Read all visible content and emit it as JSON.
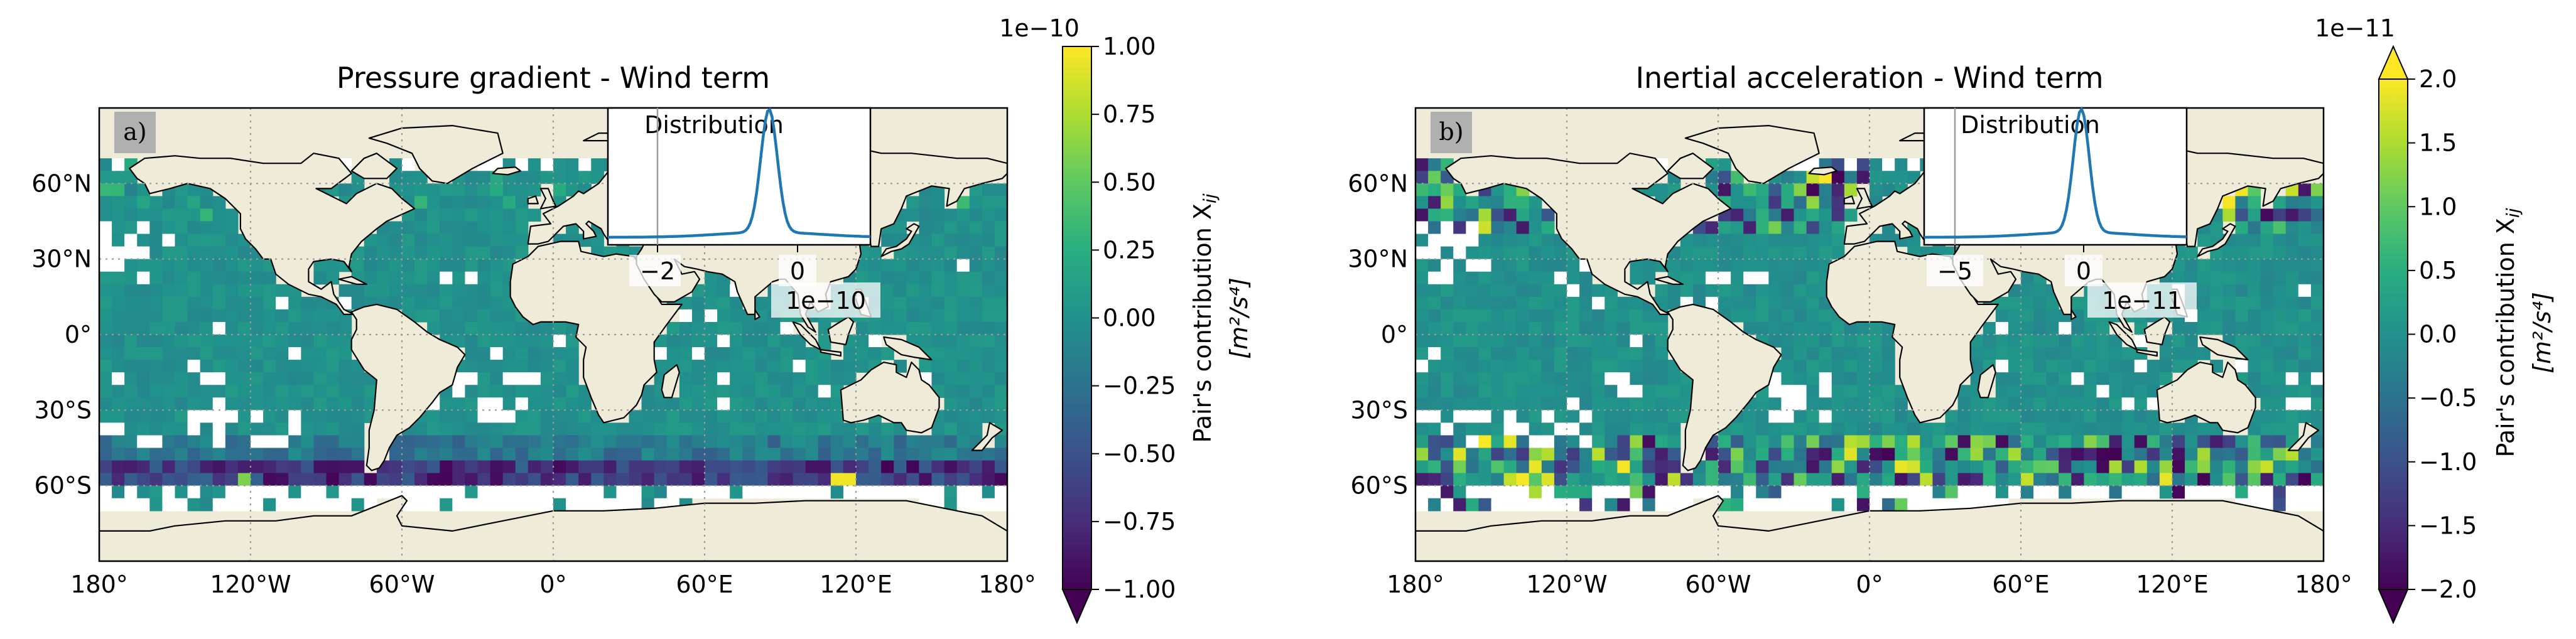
{
  "panels": [
    {
      "id": "a",
      "tag": "a)",
      "title": "Pressure gradient - Wind term",
      "x_tick_labels": [
        "180°",
        "120°W",
        "60°W",
        "0°",
        "60°E",
        "120°E",
        "180°"
      ],
      "y_tick_labels": [
        "60°N",
        "30°N",
        "0°",
        "30°S",
        "60°S"
      ],
      "colorbar": {
        "scale_label": "1e−10",
        "ticks": [
          1.0,
          0.75,
          0.5,
          0.25,
          0.0,
          -0.25,
          -0.5,
          -0.75,
          -1.0
        ],
        "tick_labels": [
          "1.00",
          "0.75",
          "0.50",
          "0.25",
          "0.00",
          "−0.25",
          "−0.50",
          "−0.75",
          "−1.00"
        ],
        "label_line1": "Pair's contribution X",
        "label_sub": "ij",
        "label_line2": "[m²/s⁴]",
        "extend": "min",
        "colormap": "viridis"
      },
      "inset": {
        "title": "Distribution",
        "x_tick_labels": [
          "−2",
          "0"
        ],
        "x_ticks": [
          -2,
          0
        ],
        "xlim": [
          -3.5,
          2.2
        ],
        "scale_label": "1e−10",
        "line_color": "#1f77b4"
      }
    },
    {
      "id": "b",
      "tag": "b)",
      "title": "Inertial acceleration - Wind term",
      "x_tick_labels": [
        "180°",
        "120°W",
        "60°W",
        "0°",
        "60°E",
        "120°E",
        "180°"
      ],
      "y_tick_labels": [
        "60°N",
        "30°N",
        "0°",
        "30°S",
        "60°S"
      ],
      "colorbar": {
        "scale_label": "1e−11",
        "ticks": [
          2.0,
          1.5,
          1.0,
          0.5,
          0.0,
          -0.5,
          -1.0,
          -1.5,
          -2.0
        ],
        "tick_labels": [
          "2.0",
          "1.5",
          "1.0",
          "0.5",
          "0.0",
          "−0.5",
          "−1.0",
          "−1.5",
          "−2.0"
        ],
        "label_line1": "Pair's contribution X",
        "label_sub": "ij",
        "label_line2": "[m²/s⁴]",
        "extend": "both",
        "colormap": "viridis"
      },
      "inset": {
        "title": "Distribution",
        "x_tick_labels": [
          "−5",
          "0"
        ],
        "x_ticks": [
          -5,
          0
        ],
        "xlim": [
          -8.2,
          5.5
        ],
        "scale_label": "1e−11",
        "line_color": "#1f77b4"
      }
    }
  ],
  "chart_data": [
    {
      "type": "heatmap",
      "title": "Pressure gradient - Wind term",
      "projection": "PlateCarree",
      "xlim": [
        -180,
        180
      ],
      "ylim": [
        -90,
        90
      ],
      "grid": true,
      "value_range": [
        -1e-10,
        1e-10
      ],
      "units": "m²/s⁴",
      "description_of_values": "Mostly near 0 (teal) over open ocean; strongly negative band (-0.5 to -1.0e-10) in Southern Ocean 50–60°S; white cells are missing data",
      "inset_distribution": {
        "peak_at": 0,
        "xlim": [
          -3.5,
          2.2
        ]
      }
    },
    {
      "type": "heatmap",
      "title": "Inertial acceleration - Wind term",
      "projection": "PlateCarree",
      "xlim": [
        -180,
        180
      ],
      "ylim": [
        -90,
        90
      ],
      "grid": true,
      "value_range": [
        -2e-11,
        2e-11
      ],
      "units": "m²/s⁴",
      "description_of_values": "Near 0 in tropics; mixed strong positive/negative cells in North Atlantic, North Pacific and Southern Ocean 40–70°S",
      "inset_distribution": {
        "peak_at": 0,
        "xlim": [
          -8.2,
          5.5
        ]
      }
    }
  ]
}
